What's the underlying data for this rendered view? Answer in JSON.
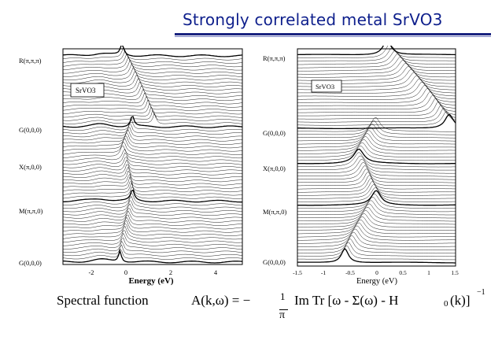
{
  "slide": {
    "title": "Strongly correlated metal SrVO3"
  },
  "panels": [
    {
      "label": "SrVO3",
      "k_points": [
        "R(π,π,π)",
        "G(0,0,0)",
        "X(π,0,0)",
        "M(π,π,0)",
        "G(0,0,0)"
      ],
      "xlabel": "Energy (eV)",
      "xticks": [
        "-2",
        "0",
        "2",
        "4"
      ]
    },
    {
      "label": "SrVO3",
      "k_points": [
        "R(π,π,π)",
        "G(0,0,0)",
        "X(π,0,0)",
        "M(π,π,0)",
        "G(0,0,0)"
      ],
      "xlabel": "Energy (eV)",
      "xticks": [
        "-1.5",
        "-1",
        "-0.5",
        "0",
        "0.5",
        "1",
        "1.5"
      ]
    }
  ],
  "formula": {
    "lead": "Spectral  function",
    "lhs": "A(k,ω) = −",
    "frac_num": "1",
    "frac_den": "π",
    "rhs": "Im  Tr  [ω - Σ(ω) - H",
    "sub": "0",
    "tail": "(k)]",
    "sup": "−1"
  },
  "chart_data": [
    {
      "type": "line",
      "title": "SrVO3",
      "xlabel": "Energy (eV)",
      "ylabel": "",
      "xlim": [
        -3.5,
        5
      ],
      "x_ticks": [
        -2,
        0,
        2,
        4
      ],
      "k_path": [
        "R(π,π,π)",
        "G(0,0,0)",
        "X(π,0,0)",
        "M(π,π,0)",
        "G(0,0,0)"
      ],
      "description_series": "stacked k-resolved spectral functions A(k,ω) along R-G-X-M-G, quasiparticle peak near 0 eV"
    },
    {
      "type": "line",
      "title": "SrVO3",
      "xlabel": "Energy (eV)",
      "ylabel": "",
      "xlim": [
        -1.5,
        1.5
      ],
      "x_ticks": [
        -1.5,
        -1,
        -0.5,
        0,
        0.5,
        1,
        1.5
      ],
      "k_path": [
        "R(π,π,π)",
        "G(0,0,0)",
        "X(π,0,0)",
        "M(π,π,0)",
        "G(0,0,0)"
      ],
      "description_series": "stacked k-resolved spectral functions A(k,ω) along R-G-X-M-G, zoom near Fermi level"
    }
  ]
}
